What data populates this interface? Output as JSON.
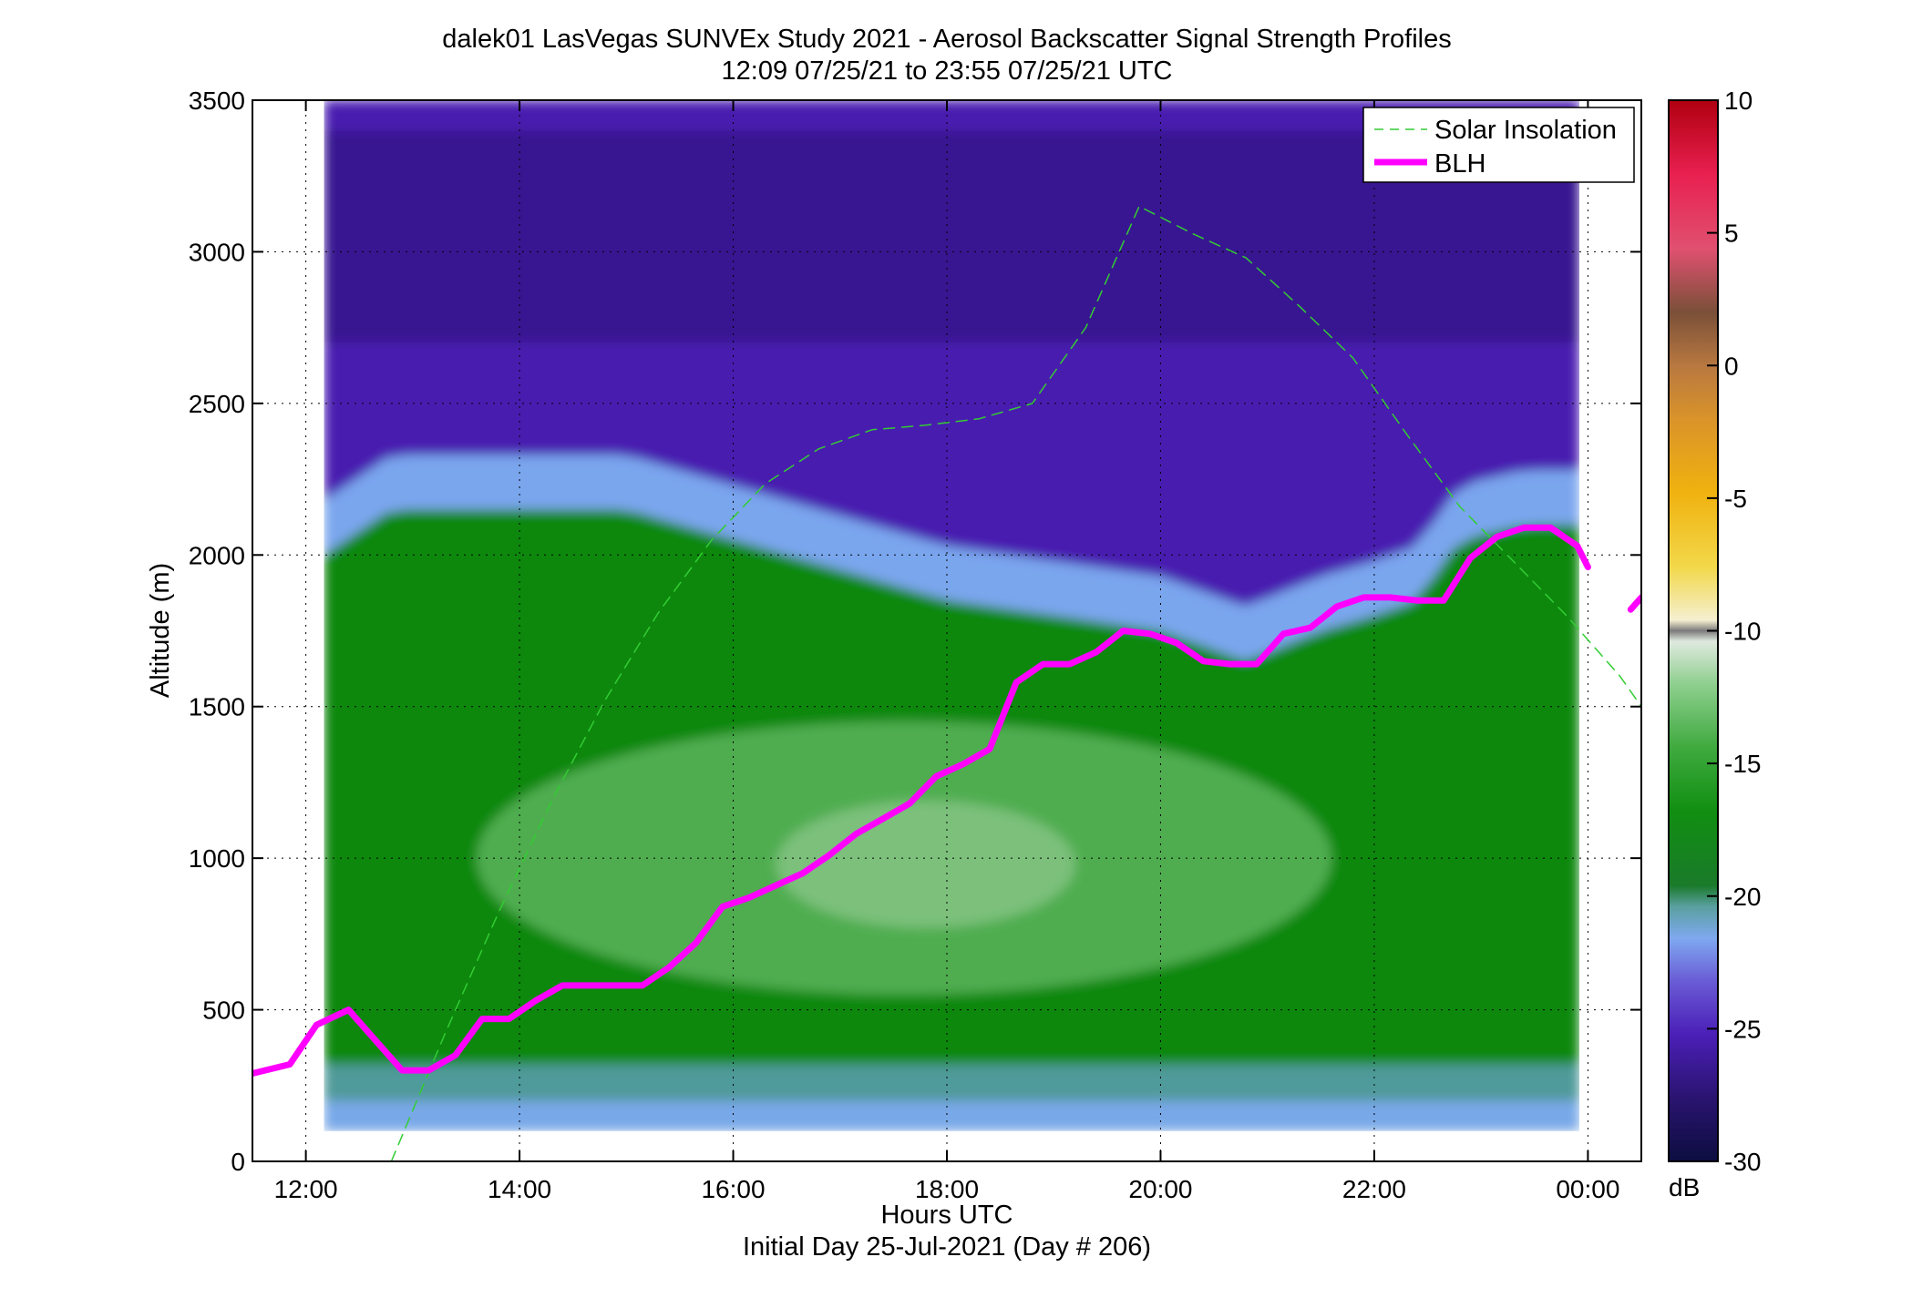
{
  "chart_data": {
    "type": "heatmap",
    "title": "dalek01 LasVegas SUNVEx Study 2021 - Aerosol Backscatter Signal Strength Profiles",
    "subtitle": "12:09 07/25/21 to 23:55 07/25/21  UTC",
    "xlabel": "Hours UTC",
    "xlabel2": "Initial Day 25-Jul-2021 (Day # 206)",
    "ylabel": "Altitude (m)",
    "xlim": [
      11.5,
      24.5
    ],
    "ylim": [
      0,
      3500
    ],
    "x_ticks": [
      12,
      14,
      16,
      18,
      20,
      22,
      24
    ],
    "x_tick_labels": [
      "12:00",
      "14:00",
      "16:00",
      "18:00",
      "20:00",
      "22:00",
      "00:00"
    ],
    "y_ticks": [
      0,
      500,
      1000,
      1500,
      2000,
      2500,
      3000,
      3500
    ],
    "y_tick_labels": [
      "0",
      "500",
      "1000",
      "1500",
      "2000",
      "2500",
      "3000",
      "3500"
    ],
    "grid": "dotted",
    "legend_position": "top-right",
    "heatmap": {
      "x_start": 12.17,
      "x_end": 23.92,
      "y_min": 100,
      "y_max": 3500,
      "description_of_layers": "aerosol layer top follows BLH",
      "top_of_layer": [
        {
          "x": 12.17,
          "y": 2000
        },
        {
          "x": 12.8,
          "y": 2150
        },
        {
          "x": 15.0,
          "y": 2150
        },
        {
          "x": 16.0,
          "y": 2050
        },
        {
          "x": 17.0,
          "y": 1950
        },
        {
          "x": 18.0,
          "y": 1850
        },
        {
          "x": 19.0,
          "y": 1800
        },
        {
          "x": 20.0,
          "y": 1750
        },
        {
          "x": 20.8,
          "y": 1650
        },
        {
          "x": 21.5,
          "y": 1750
        },
        {
          "x": 22.0,
          "y": 1800
        },
        {
          "x": 22.4,
          "y": 1850
        },
        {
          "x": 22.8,
          "y": 2050
        },
        {
          "x": 23.4,
          "y": 2100
        },
        {
          "x": 23.92,
          "y": 2100
        }
      ]
    },
    "series": [
      {
        "name": "Solar Insolation",
        "color": "#33cc33",
        "style": "dashed",
        "x": [
          12.8,
          13.3,
          13.8,
          14.3,
          14.8,
          15.3,
          15.8,
          16.3,
          16.8,
          17.3,
          17.8,
          18.3,
          18.8,
          19.3,
          19.8,
          20.3,
          20.8,
          21.3,
          21.8,
          22.3,
          22.8,
          23.3,
          23.8,
          24.3,
          24.5
        ],
        "y": [
          0,
          419,
          818,
          1188,
          1521,
          1810,
          2050,
          2235,
          2350,
          2413,
          2428,
          2449,
          2500,
          2750,
          3150,
          3060,
          2980,
          2820,
          2650,
          2400,
          2160,
          1980,
          1800,
          1600,
          1500
        ]
      },
      {
        "name": "BLH",
        "color": "#ff00ff",
        "style": "solid",
        "x": [
          11.5,
          11.85,
          12.1,
          12.4,
          12.65,
          12.9,
          13.15,
          13.4,
          13.65,
          13.9,
          14.15,
          14.4,
          14.65,
          14.9,
          15.15,
          15.4,
          15.65,
          15.9,
          16.15,
          16.4,
          16.65,
          16.9,
          17.15,
          17.4,
          17.65,
          17.9,
          18.15,
          18.4,
          18.65,
          18.9,
          19.15,
          19.4,
          19.65,
          19.9,
          20.15,
          20.4,
          20.65,
          20.9,
          21.15,
          21.4,
          21.65,
          21.9,
          22.15,
          22.4,
          22.65,
          22.9,
          23.15,
          23.4,
          23.65,
          23.9,
          24.0
        ],
        "y": [
          290,
          320,
          450,
          500,
          400,
          300,
          300,
          350,
          470,
          470,
          530,
          580,
          580,
          580,
          580,
          640,
          720,
          840,
          870,
          910,
          950,
          1010,
          1080,
          1130,
          1180,
          1270,
          1310,
          1360,
          1580,
          1640,
          1640,
          1680,
          1750,
          1740,
          1710,
          1650,
          1640,
          1640,
          1740,
          1760,
          1830,
          1860,
          1860,
          1850,
          1850,
          1990,
          2060,
          2090,
          2090,
          2030,
          1960
        ]
      },
      {
        "name": "",
        "color": "#ff00ff",
        "style": "solid",
        "x": [
          24.4,
          24.5
        ],
        "y": [
          1820,
          1860
        ]
      }
    ],
    "colorbar": {
      "label": "dB",
      "range": [
        -30,
        10
      ],
      "ticks": [
        10,
        5,
        0,
        -5,
        -10,
        -15,
        -20,
        -25,
        -30
      ],
      "tick_labels": [
        "10",
        "5",
        "0",
        "-5",
        "-10",
        "-15",
        "-20",
        "-25",
        "-30"
      ]
    }
  }
}
